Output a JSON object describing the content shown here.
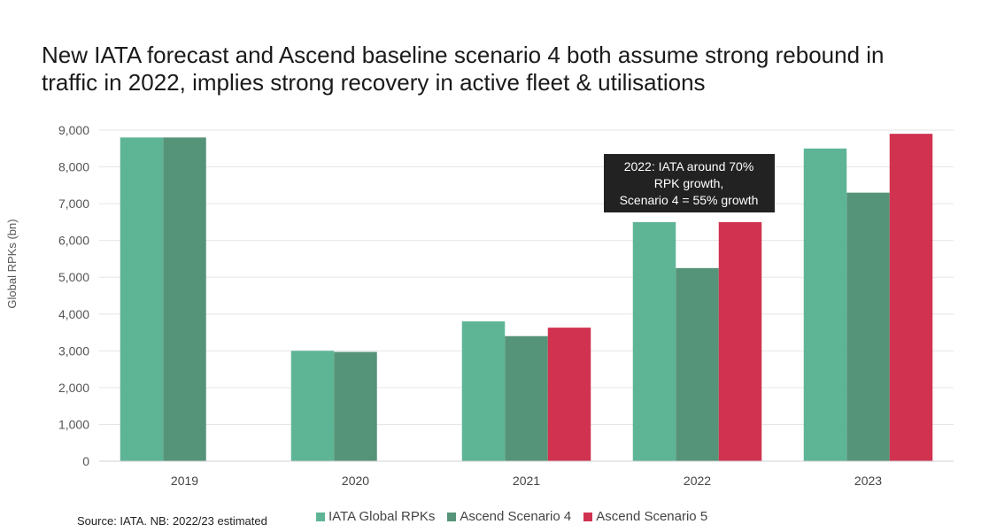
{
  "chart_data": {
    "type": "bar",
    "title": "New IATA forecast and Ascend baseline scenario 4 both assume strong rebound in traffic in 2022, implies strong recovery in active fleet & utilisations",
    "categories": [
      "2019",
      "2020",
      "2021",
      "2022",
      "2023"
    ],
    "series": [
      {
        "name": "IATA Global RPKs",
        "color": "#5eb596",
        "values": [
          8800,
          3000,
          3800,
          6500,
          8500
        ]
      },
      {
        "name": "Ascend Scenario 4",
        "color": "#559478",
        "values": [
          8800,
          2970,
          3400,
          5250,
          7300
        ]
      },
      {
        "name": "Ascend Scenario 5",
        "color": "#d03250",
        "values": [
          null,
          null,
          3630,
          6500,
          8900
        ]
      }
    ],
    "ylabel": "Global RPKs (bn)",
    "xlabel": "",
    "ylim": [
      0,
      9000
    ],
    "yticks": [
      0,
      1000,
      2000,
      3000,
      4000,
      5000,
      6000,
      7000,
      8000,
      9000
    ],
    "ytick_labels": [
      "0",
      "1,000",
      "2,000",
      "3,000",
      "4,000",
      "5,000",
      "6,000",
      "7,000",
      "8,000",
      "9,000"
    ],
    "grid": true,
    "legend_position": "bottom",
    "annotation": {
      "lines": [
        "2022: IATA around 70%",
        "RPK growth,",
        "Scenario 4 = 55% growth"
      ],
      "category": "2022"
    }
  },
  "footer": {
    "source": "Source: IATA. NB: 2022/23 estimated"
  }
}
